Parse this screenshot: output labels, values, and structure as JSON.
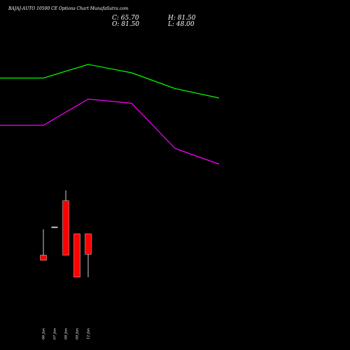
{
  "header": {
    "title": "BAJAJ-AUTO 10500  CE Options Chart MunafaSutra.com",
    "close": "C: 65.70",
    "high": "H: 81.50",
    "open": "O: 81.50",
    "low": "L: 48.00"
  },
  "chart_data": {
    "type": "candlestick",
    "title": "BAJAJ-AUTO 10500  CE Options Chart MunafaSutra.com",
    "categories": [
      "06 Jan",
      "07 Jan",
      "08 Jan",
      "09 Jan",
      "12 Jan"
    ],
    "candles": [
      {
        "date": "06 Jan",
        "open": 65.0,
        "high": 85.0,
        "low": 61.0,
        "close": 61.0
      },
      {
        "date": "07 Jan",
        "open": 87.0,
        "high": 87.0,
        "low": 86.0,
        "close": 86.0
      },
      {
        "date": "08 Jan",
        "open": 107.0,
        "high": 115.0,
        "low": 65.0,
        "close": 65.0
      },
      {
        "date": "09 Jan",
        "open": 81.5,
        "high": 81.5,
        "low": 48.0,
        "close": 48.0
      },
      {
        "date": "12 Jan",
        "open": 81.5,
        "high": 81.5,
        "low": 48.0,
        "close": 65.7
      }
    ],
    "series": [
      {
        "color": "#00ff00",
        "points": [
          {
            "x": 0,
            "y": 190
          },
          {
            "x": 1,
            "y": 190
          },
          {
            "x": 2,
            "y": 203
          },
          {
            "x": 3,
            "y": 195
          },
          {
            "x": 4,
            "y": 180
          },
          {
            "x": 5,
            "y": 171
          }
        ]
      },
      {
        "color": "#ff00ff",
        "points": [
          {
            "x": 0,
            "y": 145
          },
          {
            "x": 1,
            "y": 145
          },
          {
            "x": 2,
            "y": 170
          },
          {
            "x": 3,
            "y": 166
          },
          {
            "x": 4,
            "y": 123
          },
          {
            "x": 5,
            "y": 108
          }
        ]
      }
    ],
    "colors": {
      "up": "#ffffff",
      "down": "#ff0000",
      "wick": "#ffffff",
      "background": "#000000"
    }
  }
}
